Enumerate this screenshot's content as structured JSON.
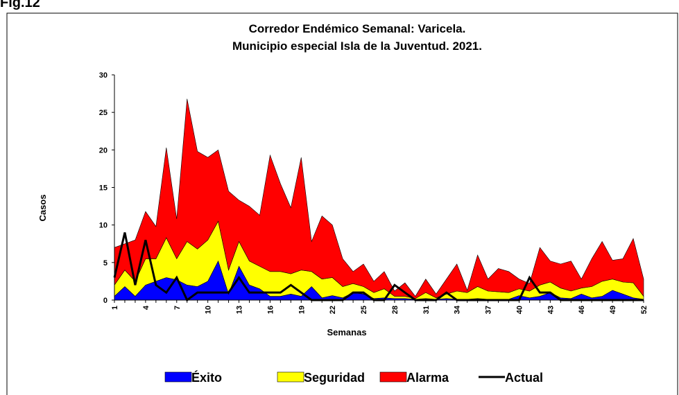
{
  "chart_data": {
    "type": "stacked_area",
    "figure_label": "Fig.12",
    "title": [
      "Corredor Endémico Semanal:  Varicela.",
      "Municipio especial Isla de la Juventud. 2021."
    ],
    "x_label": "Semanas",
    "y_label": "Casos",
    "categories": [
      "1",
      null,
      null,
      "4",
      null,
      null,
      "7",
      null,
      null,
      "10",
      null,
      null,
      "13",
      null,
      null,
      "16",
      null,
      null,
      "19",
      null,
      null,
      "22",
      null,
      null,
      "25",
      null,
      null,
      "28",
      null,
      null,
      "31",
      null,
      null,
      "34",
      null,
      null,
      "37",
      null,
      null,
      "40",
      null,
      null,
      "43",
      null,
      null,
      "46",
      null,
      null,
      "49",
      null,
      null,
      "52"
    ],
    "ylim": [
      0,
      30
    ],
    "yticks": [
      0,
      5,
      10,
      15,
      20,
      25,
      30
    ],
    "series": [
      {
        "name": "Éxito",
        "color": "#0000ff",
        "values": [
          0.5,
          1.8,
          0.5,
          2,
          2.5,
          3,
          2.7,
          2,
          1.8,
          2.5,
          5.2,
          0.8,
          4.5,
          2,
          1.5,
          0.5,
          0.5,
          0.8,
          0.5,
          1.8,
          0.3,
          0.6,
          0.3,
          1,
          0.8,
          0.2,
          0.3,
          0.2,
          0.2,
          0.1,
          0.2,
          0.1,
          0.2,
          0.1,
          0.1,
          0.2,
          0.1,
          0.1,
          0.1,
          0.6,
          0.3,
          0.5,
          1,
          0.3,
          0.2,
          0.8,
          0.3,
          0.5,
          1.3,
          0.8,
          0.3,
          0.1
        ]
      },
      {
        "name": "Seguridad",
        "color": "#ffff00",
        "values": [
          1.5,
          2.2,
          2,
          3.5,
          3,
          5.3,
          2.8,
          5.8,
          5,
          5.5,
          5.3,
          3.2,
          3.3,
          3.2,
          3,
          3.3,
          3.3,
          2.7,
          3.5,
          2,
          2.5,
          2.4,
          1.5,
          1.2,
          1,
          0.8,
          1.2,
          0.3,
          0.3,
          0.1,
          0.8,
          0.2,
          0.6,
          1.1,
          0.9,
          1.6,
          1.1,
          1,
          0.9,
          0.9,
          0.9,
          1.5,
          1.4,
          1.3,
          1,
          0.8,
          1.5,
          2,
          1.5,
          1.6,
          2,
          0.4
        ]
      },
      {
        "name": "Alarma",
        "color": "#ff0000",
        "values": [
          5,
          3.5,
          5.5,
          6.3,
          4.3,
          12,
          5.3,
          19,
          13,
          11,
          9.5,
          10.5,
          5.5,
          7.3,
          6.8,
          15.5,
          11.7,
          8.8,
          15,
          4,
          8.4,
          7,
          3.7,
          1.6,
          3,
          1.5,
          2.3,
          0.7,
          1.8,
          0.3,
          1.8,
          0.5,
          2,
          3.6,
          0.3,
          4.2,
          1.6,
          3.1,
          2.8,
          1.3,
          1,
          5,
          2.8,
          3.2,
          4,
          1.2,
          3.7,
          5.3,
          2.5,
          3.1,
          5.9,
          2.3
        ]
      },
      {
        "name": "Actual",
        "color": "#000000",
        "kind": "line",
        "values": [
          3,
          9,
          2,
          8,
          2,
          1,
          3,
          0,
          1,
          1,
          1,
          1,
          3,
          1,
          1,
          1,
          1,
          2,
          1,
          0,
          0,
          0,
          0,
          1,
          1,
          0,
          0,
          2,
          1,
          0,
          0,
          0,
          1,
          0,
          0,
          0,
          0,
          0,
          0,
          0,
          3,
          1,
          1,
          0,
          0,
          0,
          0,
          0,
          0,
          0,
          0,
          0
        ]
      }
    ]
  }
}
